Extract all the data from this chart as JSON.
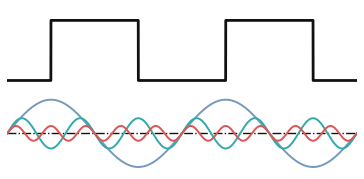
{
  "background_color": "#ffffff",
  "square_wave_color": "#111111",
  "square_wave_lw": 2.0,
  "fundamental_color": "#7799bb",
  "third_harmonic_color": "#33aaaa",
  "fifth_harmonic_color": "#dd5555",
  "sine_lw": 1.4,
  "dashed_line_color": "#111111",
  "dashed_lw": 1.0,
  "n_points": 3000,
  "fundamental_amp": 1.0,
  "third_amp": 0.45,
  "fifth_amp": 0.22,
  "figsize": [
    3.64,
    1.79
  ],
  "dpi": 100,
  "sq_period": 2.0,
  "sq_duty": 0.5,
  "sq_phase_shift": 0.5
}
